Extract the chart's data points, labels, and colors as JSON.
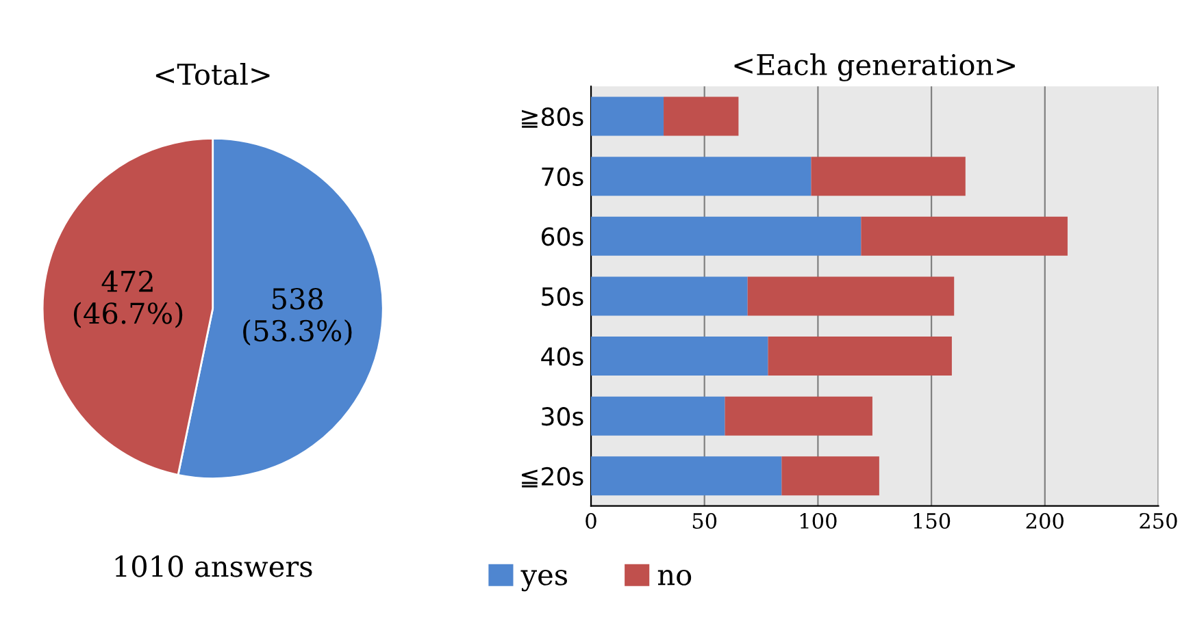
{
  "chart_data": [
    {
      "type": "pie",
      "title": "<Total>",
      "categories": [
        null,
        null
      ],
      "values": [
        538,
        472
      ],
      "colors": [
        "#4f86d0",
        "#c0504d"
      ],
      "value_labels": [
        "538\n(53.3%)",
        "472\n(46.7%)"
      ],
      "annotations": [
        "1010 answers"
      ],
      "legend": false
    },
    {
      "type": "bar",
      "title": "<Each generation>",
      "orientation": "horizontal",
      "stacked": true,
      "categories": [
        "≧80s",
        "70s",
        "60s",
        "50s",
        "40s",
        "30s",
        "≦20s"
      ],
      "series": [
        {
          "name": "yes",
          "color": "#4f86d0",
          "values": [
            32,
            97,
            119,
            69,
            78,
            59,
            84
          ]
        },
        {
          "name": "no",
          "color": "#c0504d",
          "values": [
            33,
            68,
            91,
            91,
            81,
            65,
            43
          ]
        }
      ],
      "xlim": [
        0,
        250
      ],
      "xticks": [
        0,
        50,
        100,
        150,
        200,
        250
      ],
      "grid": "x",
      "legend": "bottom"
    }
  ]
}
